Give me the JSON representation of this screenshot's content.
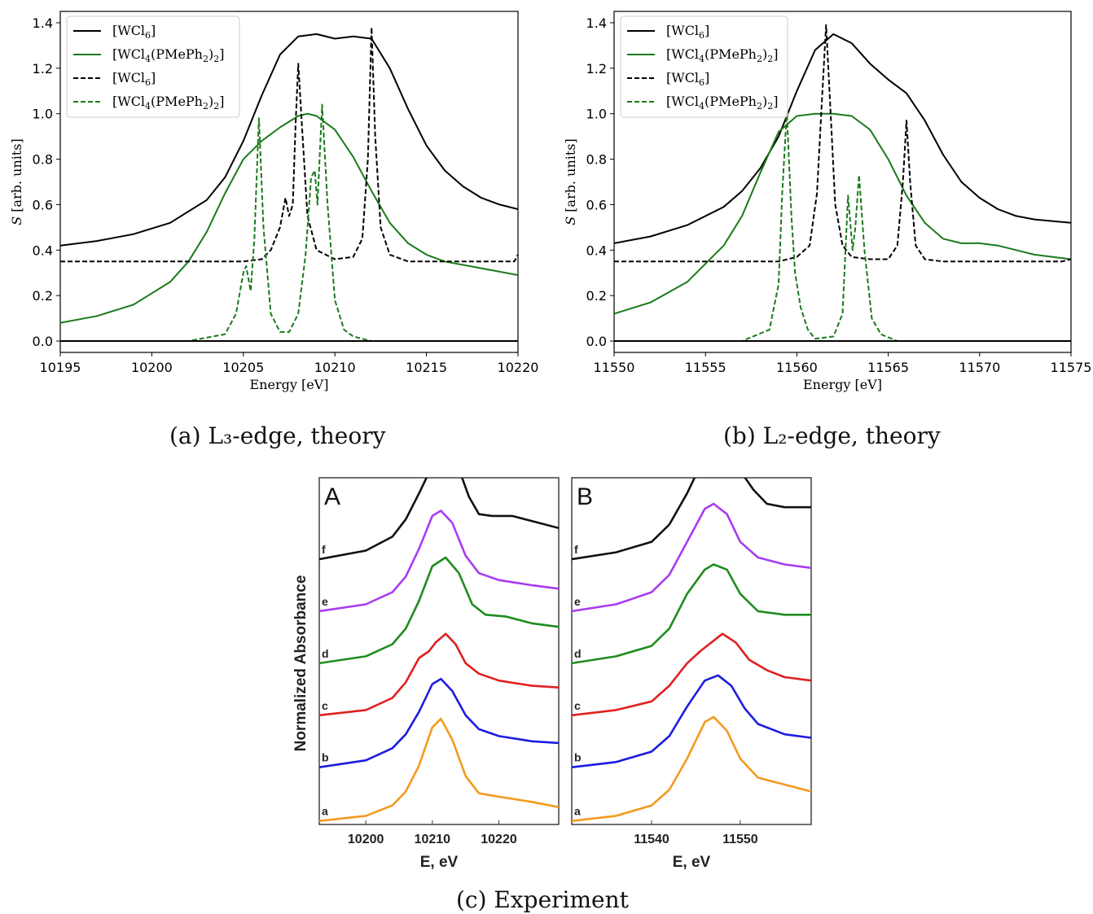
{
  "chart_data": [
    {
      "id": "a",
      "type": "line",
      "caption": "(a) L₃-edge, theory",
      "xlabel": "Energy [eV]",
      "ylabel": "S [arb. units]",
      "xlim": [
        10195,
        10220
      ],
      "ylim": [
        -0.05,
        1.45
      ],
      "xticks": [
        10195,
        10200,
        10205,
        10210,
        10215,
        10220
      ],
      "yticks": [
        0.0,
        0.2,
        0.4,
        0.6,
        0.8,
        1.0,
        1.2,
        1.4
      ],
      "legend_position": "top-left",
      "series": [
        {
          "name": "[WCl₆]",
          "color": "#000000",
          "dash": "solid",
          "x": [
            10195,
            10197,
            10199,
            10201,
            10203,
            10204,
            10205,
            10206,
            10207,
            10208,
            10209,
            10210,
            10211,
            10212,
            10213,
            10214,
            10215,
            10216,
            10217,
            10218,
            10219,
            10220
          ],
          "y": [
            0.42,
            0.44,
            0.47,
            0.52,
            0.62,
            0.72,
            0.88,
            1.08,
            1.26,
            1.34,
            1.35,
            1.33,
            1.34,
            1.33,
            1.2,
            1.02,
            0.86,
            0.75,
            0.68,
            0.63,
            0.6,
            0.58
          ]
        },
        {
          "name": "[WCl₄(PMePh₂)₂]",
          "color": "#1a7a1a",
          "dash": "solid",
          "x": [
            10195,
            10197,
            10199,
            10201,
            10202,
            10203,
            10204,
            10205,
            10206,
            10207,
            10208,
            10208.5,
            10209,
            10210,
            10211,
            10212,
            10213,
            10214,
            10215,
            10216,
            10218,
            10220
          ],
          "y": [
            0.08,
            0.11,
            0.16,
            0.26,
            0.35,
            0.48,
            0.65,
            0.8,
            0.88,
            0.94,
            0.99,
            1.0,
            0.99,
            0.93,
            0.81,
            0.66,
            0.52,
            0.43,
            0.38,
            0.35,
            0.32,
            0.29
          ]
        },
        {
          "name": "[WCl₆]",
          "color": "#000000",
          "dash": "dashed",
          "x": [
            10195,
            10200,
            10205,
            10206,
            10206.5,
            10207,
            10207.3,
            10207.5,
            10207.7,
            10207.85,
            10208,
            10208.2,
            10208.5,
            10209,
            10210,
            10211,
            10211.5,
            10211.8,
            10212,
            10212.2,
            10212.5,
            10213,
            10214,
            10216,
            10219,
            10219.8,
            10220
          ],
          "y": [
            0.35,
            0.35,
            0.35,
            0.36,
            0.4,
            0.5,
            0.63,
            0.55,
            0.6,
            0.95,
            1.22,
            0.95,
            0.55,
            0.4,
            0.36,
            0.37,
            0.45,
            0.8,
            1.38,
            0.9,
            0.5,
            0.38,
            0.35,
            0.35,
            0.35,
            0.35,
            0.38
          ]
        },
        {
          "name": "[WCl₄(PMePh₂)₂]",
          "color": "#1a7a1a",
          "dash": "dashed",
          "x": [
            10195,
            10202,
            10204,
            10204.6,
            10205,
            10205.15,
            10205.4,
            10205.6,
            10205.85,
            10206.1,
            10206.5,
            10207,
            10207.5,
            10208,
            10208.4,
            10208.7,
            10208.9,
            10209.05,
            10209.3,
            10209.6,
            10210,
            10210.5,
            10211,
            10212,
            10213.3
          ],
          "y": [
            0.0,
            0.0,
            0.03,
            0.12,
            0.3,
            0.33,
            0.22,
            0.45,
            0.98,
            0.5,
            0.12,
            0.04,
            0.04,
            0.12,
            0.38,
            0.72,
            0.75,
            0.6,
            1.04,
            0.6,
            0.18,
            0.05,
            0.02,
            0.0,
            0.0
          ]
        },
        {
          "name": "",
          "color": "#000000",
          "dash": "solid",
          "x": [
            10195,
            10220
          ],
          "y": [
            0.0,
            0.0
          ]
        }
      ]
    },
    {
      "id": "b",
      "type": "line",
      "caption": "(b) L₂-edge, theory",
      "xlabel": "Energy [eV]",
      "ylabel": "S [arb. units]",
      "xlim": [
        11550,
        11575
      ],
      "ylim": [
        -0.05,
        1.45
      ],
      "xticks": [
        11550,
        11555,
        11560,
        11565,
        11570,
        11575
      ],
      "yticks": [
        0.0,
        0.2,
        0.4,
        0.6,
        0.8,
        1.0,
        1.2,
        1.4
      ],
      "legend_position": "top-left",
      "series": [
        {
          "name": "[WCl₆]",
          "color": "#000000",
          "dash": "solid",
          "x": [
            11550,
            11552,
            11554,
            11556,
            11557,
            11558,
            11559,
            11560,
            11561,
            11562,
            11563,
            11564,
            11565,
            11566,
            11567,
            11568,
            11569,
            11570,
            11571,
            11572,
            11573,
            11575
          ],
          "y": [
            0.43,
            0.46,
            0.51,
            0.59,
            0.66,
            0.76,
            0.9,
            1.1,
            1.28,
            1.35,
            1.31,
            1.22,
            1.15,
            1.09,
            0.97,
            0.82,
            0.7,
            0.63,
            0.58,
            0.55,
            0.535,
            0.52
          ]
        },
        {
          "name": "[WCl₄(PMePh₂)₂]",
          "color": "#1a7a1a",
          "dash": "solid",
          "x": [
            11550,
            11552,
            11554,
            11556,
            11557,
            11558,
            11559,
            11560,
            11561,
            11562,
            11563,
            11564,
            11565,
            11566,
            11567,
            11568,
            11569,
            11570,
            11571,
            11572,
            11573,
            11575
          ],
          "y": [
            0.12,
            0.17,
            0.26,
            0.42,
            0.55,
            0.74,
            0.92,
            0.99,
            1.0,
            1.0,
            0.99,
            0.93,
            0.8,
            0.64,
            0.52,
            0.45,
            0.43,
            0.43,
            0.42,
            0.4,
            0.38,
            0.36
          ]
        },
        {
          "name": "[WCl₆]",
          "color": "#000000",
          "dash": "dashed",
          "x": [
            11550,
            11555,
            11558,
            11559,
            11559.5,
            11560,
            11560.7,
            11561.1,
            11561.4,
            11561.6,
            11561.85,
            11562.1,
            11562.5,
            11563,
            11564,
            11565,
            11565.5,
            11565.8,
            11566,
            11566.2,
            11566.5,
            11567,
            11568,
            11570,
            11573,
            11574.5,
            11575
          ],
          "y": [
            0.35,
            0.35,
            0.35,
            0.35,
            0.36,
            0.37,
            0.42,
            0.65,
            1.1,
            1.39,
            1.0,
            0.6,
            0.42,
            0.37,
            0.36,
            0.36,
            0.42,
            0.7,
            0.97,
            0.7,
            0.42,
            0.36,
            0.35,
            0.35,
            0.35,
            0.35,
            0.36
          ]
        },
        {
          "name": "[WCl₄(PMePh₂)₂]",
          "color": "#1a7a1a",
          "dash": "dashed",
          "x": [
            11550,
            11557,
            11558.5,
            11559,
            11559.2,
            11559.45,
            11559.7,
            11559.9,
            11560.2,
            11560.6,
            11561,
            11562,
            11562.5,
            11562.8,
            11563.05,
            11563.2,
            11563.4,
            11563.7,
            11564.1,
            11564.6,
            11565.5,
            11567.8
          ],
          "y": [
            0.0,
            0.0,
            0.05,
            0.25,
            0.65,
            1.01,
            0.55,
            0.3,
            0.15,
            0.05,
            0.01,
            0.02,
            0.12,
            0.64,
            0.4,
            0.5,
            0.73,
            0.4,
            0.1,
            0.03,
            0.0,
            0.0
          ]
        },
        {
          "name": "",
          "color": "#000000",
          "dash": "solid",
          "x": [
            11550,
            11575
          ],
          "y": [
            0.0,
            0.0
          ]
        }
      ]
    },
    {
      "id": "c-A",
      "type": "line",
      "panel_label": "A",
      "xlabel": "E, eV",
      "ylabel": "Normalized Absorbance",
      "xlim": [
        10193,
        10229
      ],
      "ylim": [
        0,
        10
      ],
      "xticks": [
        10200,
        10210,
        10220
      ],
      "trace_labels": [
        "a",
        "b",
        "c",
        "d",
        "e",
        "f"
      ],
      "series": [
        {
          "label": "a",
          "color": "#f39a1e",
          "offset": 0.0,
          "x": [
            10193,
            10200,
            10204,
            10206,
            10208,
            10210,
            10211.3,
            10213,
            10215,
            10217,
            10220,
            10225,
            10229
          ],
          "y": [
            0.0,
            0.15,
            0.45,
            0.85,
            1.6,
            2.7,
            2.95,
            2.35,
            1.3,
            0.8,
            0.7,
            0.55,
            0.4
          ]
        },
        {
          "label": "b",
          "color": "#1c1ce0",
          "offset": 1.55,
          "x": [
            10193,
            10200,
            10204,
            10206,
            10208,
            10210,
            10211.3,
            10213,
            10215,
            10217,
            10220,
            10225,
            10229
          ],
          "y": [
            0.0,
            0.2,
            0.55,
            0.95,
            1.6,
            2.4,
            2.55,
            2.2,
            1.5,
            1.1,
            0.9,
            0.75,
            0.7
          ]
        },
        {
          "label": "c",
          "color": "#e02020",
          "offset": 3.05,
          "x": [
            10193,
            10200,
            10204,
            10206,
            10208,
            10209.5,
            10210.5,
            10212,
            10213.5,
            10215,
            10217,
            10220,
            10225,
            10229
          ],
          "y": [
            0.0,
            0.15,
            0.5,
            0.95,
            1.65,
            1.85,
            2.1,
            2.35,
            2.05,
            1.5,
            1.2,
            1.0,
            0.85,
            0.8
          ]
        },
        {
          "label": "d",
          "color": "#1e8c1e",
          "offset": 4.55,
          "x": [
            10193,
            10200,
            10204,
            10206,
            10208,
            10210,
            10212,
            10214,
            10216,
            10218,
            10221,
            10225,
            10229
          ],
          "y": [
            0.0,
            0.2,
            0.55,
            1.0,
            1.8,
            2.8,
            3.05,
            2.6,
            1.7,
            1.4,
            1.35,
            1.15,
            1.05
          ]
        },
        {
          "label": "e",
          "color": "#a83cf0",
          "offset": 6.05,
          "x": [
            10193,
            10200,
            10204,
            10206,
            10208,
            10210,
            10211.3,
            10213,
            10215,
            10217,
            10220,
            10225,
            10229
          ],
          "y": [
            0.0,
            0.2,
            0.55,
            1.0,
            1.8,
            2.75,
            2.9,
            2.55,
            1.6,
            1.1,
            0.9,
            0.75,
            0.65
          ]
        },
        {
          "label": "f",
          "color": "#111111",
          "offset": 7.55,
          "x": [
            10193,
            10200,
            10204,
            10206,
            10208,
            10210,
            10211,
            10212.5,
            10214,
            10215.5,
            10217,
            10219,
            10222,
            10225,
            10229
          ],
          "y": [
            0.0,
            0.25,
            0.65,
            1.15,
            1.9,
            2.7,
            2.85,
            2.85,
            2.6,
            1.8,
            1.3,
            1.25,
            1.25,
            1.1,
            0.9
          ]
        }
      ]
    },
    {
      "id": "c-B",
      "type": "line",
      "panel_label": "B",
      "xlabel": "E, eV",
      "caption": "(c) Experiment",
      "xlim": [
        11531,
        11558
      ],
      "ylim": [
        0,
        10
      ],
      "xticks": [
        11540,
        11550
      ],
      "trace_labels": [
        "a",
        "b",
        "c",
        "d",
        "e",
        "f"
      ],
      "series": [
        {
          "label": "a",
          "color": "#f39a1e",
          "offset": 0.0,
          "x": [
            11531,
            11536,
            11540,
            11542,
            11544,
            11546,
            11547,
            11548.5,
            11550,
            11552,
            11555,
            11558
          ],
          "y": [
            0.0,
            0.15,
            0.45,
            0.9,
            1.8,
            2.85,
            3.0,
            2.6,
            1.8,
            1.25,
            1.05,
            0.85
          ]
        },
        {
          "label": "b",
          "color": "#1c1ce0",
          "offset": 1.55,
          "x": [
            11531,
            11536,
            11540,
            11542,
            11544,
            11546,
            11547.5,
            11549,
            11550.5,
            11552,
            11555,
            11558
          ],
          "y": [
            0.0,
            0.15,
            0.45,
            0.9,
            1.75,
            2.5,
            2.65,
            2.35,
            1.7,
            1.25,
            0.95,
            0.85
          ]
        },
        {
          "label": "c",
          "color": "#e02020",
          "offset": 3.05,
          "x": [
            11531,
            11536,
            11540,
            11542,
            11544,
            11545.5,
            11547,
            11548,
            11549.5,
            11551,
            11553,
            11555,
            11558
          ],
          "y": [
            0.0,
            0.15,
            0.4,
            0.85,
            1.5,
            1.85,
            2.15,
            2.35,
            2.1,
            1.6,
            1.3,
            1.1,
            1.0
          ]
        },
        {
          "label": "d",
          "color": "#1e8c1e",
          "offset": 4.55,
          "x": [
            11531,
            11536,
            11540,
            11542,
            11544,
            11546,
            11547,
            11548.5,
            11550,
            11552,
            11555,
            11558
          ],
          "y": [
            0.0,
            0.2,
            0.5,
            1.0,
            2.0,
            2.7,
            2.85,
            2.7,
            2.0,
            1.5,
            1.4,
            1.4
          ]
        },
        {
          "label": "e",
          "color": "#a83cf0",
          "offset": 6.05,
          "x": [
            11531,
            11536,
            11540,
            11542,
            11544,
            11546,
            11547,
            11548.5,
            11550,
            11552,
            11555,
            11558
          ],
          "y": [
            0.0,
            0.2,
            0.55,
            1.05,
            2.0,
            2.95,
            3.1,
            2.8,
            2.0,
            1.55,
            1.35,
            1.25
          ]
        },
        {
          "label": "f",
          "color": "#111111",
          "offset": 7.55,
          "x": [
            11531,
            11536,
            11540,
            11542,
            11544,
            11545.5,
            11547,
            11548.5,
            11550,
            11551.5,
            11553,
            11555,
            11558
          ],
          "y": [
            0.0,
            0.2,
            0.5,
            1.0,
            1.9,
            2.7,
            3.1,
            3.0,
            2.55,
            2.0,
            1.6,
            1.5,
            1.5
          ]
        }
      ]
    }
  ],
  "captions": {
    "a": "(a) L₃-edge, theory",
    "b": "(b) L₂-edge, theory",
    "c": "(c) Experiment"
  }
}
